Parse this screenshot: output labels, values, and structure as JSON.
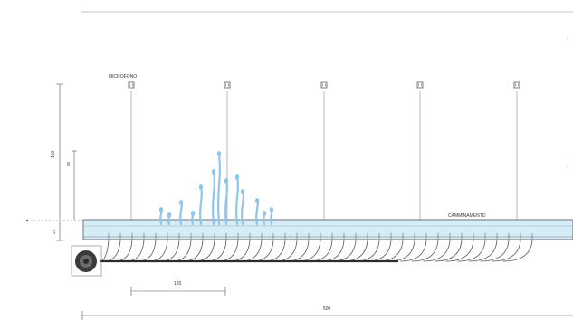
{
  "header": {
    "title": ""
  },
  "labels": {
    "microfono": "MICROFONO",
    "camminamento": "CAMMINAMENTO"
  },
  "dimensions": {
    "height_total": "150",
    "height_inner": "95",
    "height_base": "25",
    "spacing": "120",
    "length_total": "500"
  },
  "microphone_count": 5,
  "colors": {
    "line": "#555555",
    "channel_fill": "#d6ecf7",
    "water": "#8fc6ea",
    "dark": "#2b2b2b"
  }
}
